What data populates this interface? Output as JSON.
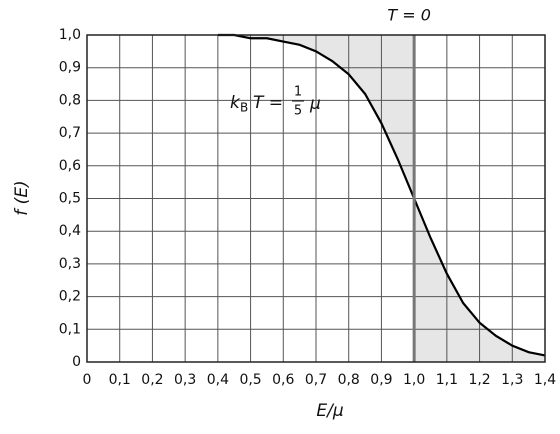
{
  "chart_data": {
    "type": "line",
    "x": [
      0.4,
      0.45,
      0.5,
      0.55,
      0.6,
      0.65,
      0.7,
      0.75,
      0.8,
      0.85,
      0.9,
      0.95,
      1.0,
      1.05,
      1.1,
      1.15,
      1.2,
      1.25,
      1.3,
      1.35,
      1.4
    ],
    "series": [
      {
        "color": "#000000",
        "values": [
          1.0,
          1.0,
          0.99,
          0.99,
          0.98,
          0.97,
          0.95,
          0.92,
          0.88,
          0.82,
          0.73,
          0.62,
          0.5,
          0.38,
          0.27,
          0.18,
          0.12,
          0.08,
          0.05,
          0.03,
          0.02
        ]
      }
    ],
    "x_label": "E/μ",
    "y_label": "f (E)",
    "xlim": [
      0,
      1.4
    ],
    "ylim": [
      0,
      1.0
    ],
    "xticks": [
      0,
      {
        "value": 0.1,
        "label": "0,1"
      },
      {
        "value": 0.2,
        "label": "0,2"
      },
      {
        "value": 0.3,
        "label": "0,3"
      },
      {
        "value": 0.4,
        "label": "0,4"
      },
      {
        "value": 0.5,
        "label": "0,5"
      },
      {
        "value": 0.6,
        "label": "0,6"
      },
      {
        "value": 0.7,
        "label": "0,7"
      },
      {
        "value": 0.8,
        "label": "0,8"
      },
      {
        "value": 0.9,
        "label": "0,9"
      },
      {
        "value": 1.0,
        "label": "1,0"
      },
      {
        "value": 1.1,
        "label": "1,1"
      },
      {
        "value": 1.2,
        "label": "1,2"
      },
      {
        "value": 1.3,
        "label": "1,3"
      },
      {
        "value": 1.4,
        "label": "1,4"
      }
    ],
    "yticks": [
      0,
      {
        "value": 0.1,
        "label": "0,1"
      },
      {
        "value": 0.2,
        "label": "0,2"
      },
      {
        "value": 0.3,
        "label": "0,3"
      },
      {
        "value": 0.4,
        "label": "0,4"
      },
      {
        "value": 0.5,
        "label": "0,5"
      },
      {
        "value": 0.6,
        "label": "0,6"
      },
      {
        "value": 0.7,
        "label": "0,7"
      },
      {
        "value": 0.8,
        "label": "0,8"
      },
      {
        "value": 0.9,
        "label": "0,9"
      },
      {
        "value": 1.0,
        "label": "1,0"
      }
    ],
    "grid": true,
    "step_label": {
      "text": "T = 0",
      "x": 1.0
    },
    "curve_label": {
      "k": "k",
      "sub": "B",
      "t": "T =",
      "num": "1",
      "den": "5",
      "mu": "μ"
    }
  }
}
